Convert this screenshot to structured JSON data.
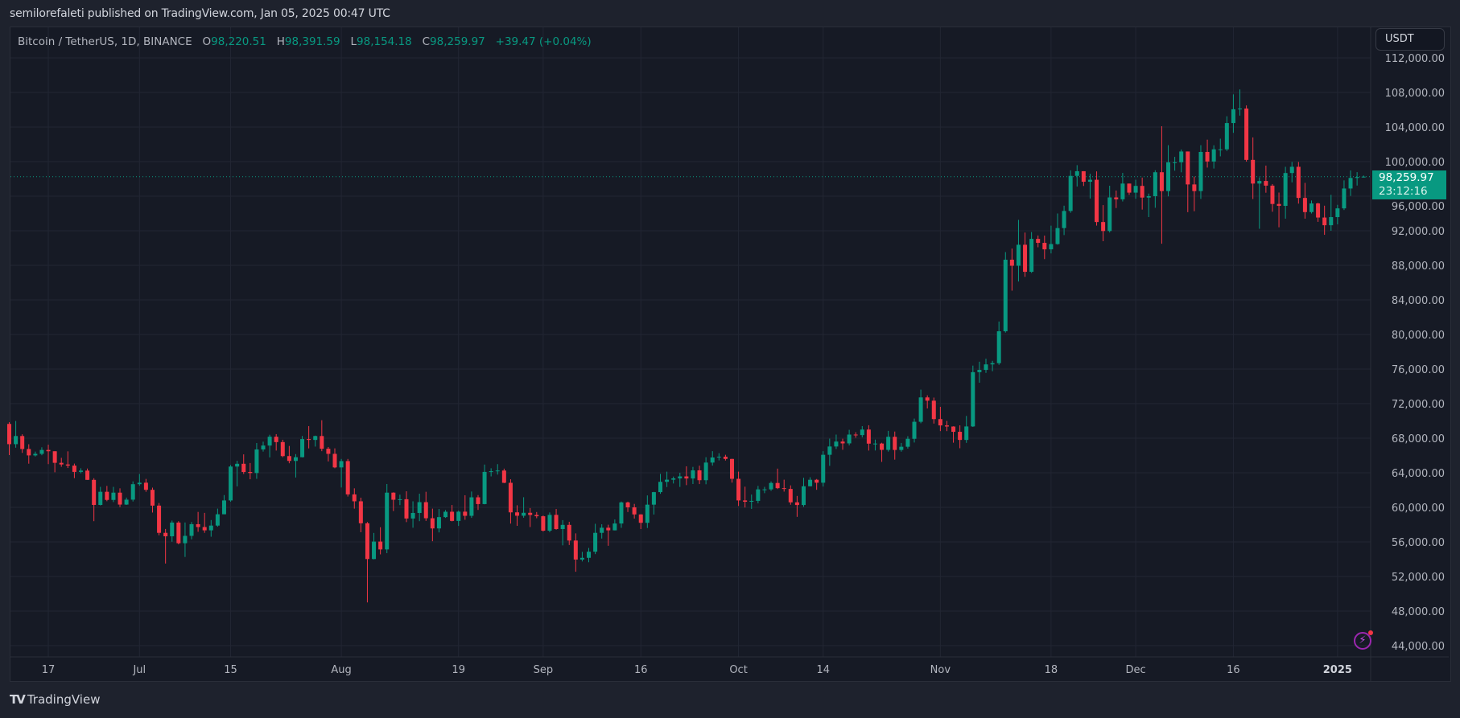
{
  "header": {
    "published": "semilorefaleti published on TradingView.com, Jan 05, 2025 00:47 UTC"
  },
  "legend": {
    "symbol": "Bitcoin / TetherUS, 1D, BINANCE",
    "o_label": "O",
    "o": "98,220.51",
    "h_label": "H",
    "h": "98,391.59",
    "l_label": "L",
    "l": "98,154.18",
    "c_label": "C",
    "c": "98,259.97",
    "change": "+39.47 (+0.04%)"
  },
  "currency_button": "USDT",
  "last_price": {
    "value": "98,259.97",
    "countdown": "23:12:16"
  },
  "footer": {
    "brand": "TradingView",
    "logo": "TV"
  },
  "icons": {
    "alert": "lightning-icon"
  },
  "colors": {
    "up": "#089981",
    "down": "#f23645",
    "background": "#161a25",
    "grid": "#222633"
  },
  "chart_data": {
    "type": "candlestick",
    "title": "",
    "xlabel": "",
    "ylabel": "",
    "ylim": [
      42000,
      112500
    ],
    "grid": true,
    "last_price": 98259.97,
    "y_ticks": [
      {
        "value": 44000,
        "label": "44,000.00"
      },
      {
        "value": 48000,
        "label": "48,000.00"
      },
      {
        "value": 52000,
        "label": "52,000.00"
      },
      {
        "value": 56000,
        "label": "56,000.00"
      },
      {
        "value": 60000,
        "label": "60,000.00"
      },
      {
        "value": 64000,
        "label": "64,000.00"
      },
      {
        "value": 68000,
        "label": "68,000.00"
      },
      {
        "value": 72000,
        "label": "72,000.00"
      },
      {
        "value": 76000,
        "label": "76,000.00"
      },
      {
        "value": 80000,
        "label": "80,000.00"
      },
      {
        "value": 84000,
        "label": "84,000.00"
      },
      {
        "value": 88000,
        "label": "88,000.00"
      },
      {
        "value": 92000,
        "label": "92,000.00"
      },
      {
        "value": 96000,
        "label": "96,000.00"
      },
      {
        "value": 100000,
        "label": "100,000.00"
      },
      {
        "value": 104000,
        "label": "104,000.00"
      },
      {
        "value": 108000,
        "label": "108,000.00"
      },
      {
        "value": 112000,
        "label": "112,000.00"
      }
    ],
    "x_ticks": [
      {
        "date": "2024-06-17",
        "label": "17"
      },
      {
        "date": "2024-07-01",
        "label": "Jul"
      },
      {
        "date": "2024-07-15",
        "label": "15"
      },
      {
        "date": "2024-08-01",
        "label": "Aug"
      },
      {
        "date": "2024-08-19",
        "label": "19"
      },
      {
        "date": "2024-09-01",
        "label": "Sep"
      },
      {
        "date": "2024-09-16",
        "label": "16"
      },
      {
        "date": "2024-10-01",
        "label": "Oct"
      },
      {
        "date": "2024-10-14",
        "label": "14"
      },
      {
        "date": "2024-11-01",
        "label": "Nov"
      },
      {
        "date": "2024-11-18",
        "label": "18"
      },
      {
        "date": "2024-12-01",
        "label": "Dec"
      },
      {
        "date": "2024-12-16",
        "label": "16"
      },
      {
        "date": "2025-01-01",
        "label": "2025"
      }
    ],
    "start_date": "2024-06-11",
    "columns": [
      "open",
      "high",
      "low",
      "close"
    ],
    "ohlc": [
      [
        69650,
        69850,
        66050,
        67310
      ],
      [
        67310,
        69990,
        66900,
        68250
      ],
      [
        68250,
        68450,
        66300,
        66750
      ],
      [
        66750,
        67300,
        65050,
        66010
      ],
      [
        66010,
        66450,
        65880,
        66190
      ],
      [
        66190,
        66950,
        66030,
        66640
      ],
      [
        66640,
        67250,
        65000,
        66490
      ],
      [
        66490,
        66490,
        64060,
        65150
      ],
      [
        65150,
        65730,
        64690,
        64960
      ],
      [
        64960,
        66480,
        64550,
        64830
      ],
      [
        64830,
        65060,
        63380,
        64100
      ],
      [
        64100,
        64520,
        63940,
        64250
      ],
      [
        64250,
        64490,
        63180,
        63180
      ],
      [
        63180,
        63370,
        58400,
        60280
      ],
      [
        60280,
        62370,
        60220,
        61800
      ],
      [
        61800,
        62480,
        60710,
        60860
      ],
      [
        60860,
        62370,
        60610,
        61700
      ],
      [
        61700,
        62200,
        60030,
        60320
      ],
      [
        60320,
        61130,
        60280,
        60890
      ],
      [
        60890,
        63000,
        60680,
        62680
      ],
      [
        62680,
        63860,
        62500,
        62850
      ],
      [
        62850,
        63290,
        61800,
        62030
      ],
      [
        62030,
        62280,
        59400,
        60200
      ],
      [
        60200,
        60500,
        56770,
        57050
      ],
      [
        57050,
        57500,
        53500,
        56650
      ],
      [
        56650,
        58470,
        56020,
        58240
      ],
      [
        58240,
        58400,
        55720,
        55850
      ],
      [
        55850,
        58250,
        54260,
        56700
      ],
      [
        56700,
        58300,
        56300,
        58050
      ],
      [
        58050,
        59470,
        57170,
        57720
      ],
      [
        57720,
        59360,
        57050,
        57340
      ],
      [
        57340,
        58530,
        56600,
        57890
      ],
      [
        57890,
        59850,
        57760,
        59200
      ],
      [
        59200,
        61420,
        59200,
        60800
      ],
      [
        60800,
        64900,
        60650,
        64720
      ],
      [
        64720,
        65390,
        62420,
        65040
      ],
      [
        65040,
        66130,
        63860,
        64090
      ],
      [
        64090,
        65130,
        63250,
        63970
      ],
      [
        63970,
        67440,
        63300,
        66700
      ],
      [
        66700,
        67600,
        66450,
        67150
      ],
      [
        67150,
        68400,
        65780,
        68170
      ],
      [
        68170,
        68470,
        66570,
        67550
      ],
      [
        67550,
        67820,
        65800,
        65930
      ],
      [
        65930,
        67100,
        65100,
        65370
      ],
      [
        65370,
        66160,
        63450,
        65800
      ],
      [
        65800,
        68260,
        65780,
        67900
      ],
      [
        67900,
        69400,
        66820,
        67800
      ],
      [
        67800,
        68300,
        67030,
        68250
      ],
      [
        68250,
        70080,
        66500,
        66780
      ],
      [
        66780,
        66980,
        65310,
        66190
      ],
      [
        66190,
        66820,
        64520,
        64620
      ],
      [
        64620,
        65600,
        62300,
        65350
      ],
      [
        65350,
        65600,
        61250,
        61500
      ],
      [
        61500,
        62200,
        59850,
        60700
      ],
      [
        60700,
        61120,
        57120,
        58160
      ],
      [
        58160,
        58300,
        49000,
        54020
      ],
      [
        54020,
        57040,
        53980,
        56040
      ],
      [
        56040,
        57700,
        54560,
        55130
      ],
      [
        55130,
        62700,
        54700,
        61700
      ],
      [
        61700,
        61740,
        59570,
        60880
      ],
      [
        60880,
        61470,
        60260,
        60940
      ],
      [
        60940,
        61860,
        58290,
        58710
      ],
      [
        58710,
        60700,
        57640,
        59350
      ],
      [
        59350,
        61580,
        58400,
        60600
      ],
      [
        60600,
        61800,
        58430,
        58740
      ],
      [
        58740,
        59850,
        56080,
        57560
      ],
      [
        57560,
        59810,
        57100,
        58870
      ],
      [
        58870,
        59690,
        58780,
        59490
      ],
      [
        59490,
        60270,
        58380,
        58430
      ],
      [
        58430,
        59620,
        57850,
        59500
      ],
      [
        59500,
        61400,
        58560,
        59020
      ],
      [
        59020,
        61830,
        58780,
        61160
      ],
      [
        61160,
        61420,
        59700,
        60380
      ],
      [
        60380,
        64950,
        60350,
        64100
      ],
      [
        64100,
        64520,
        63580,
        64180
      ],
      [
        64180,
        65000,
        63790,
        64260
      ],
      [
        64260,
        64480,
        62800,
        62840
      ],
      [
        62840,
        63250,
        58120,
        59420
      ],
      [
        59420,
        60240,
        57860,
        59030
      ],
      [
        59030,
        61170,
        58800,
        59370
      ],
      [
        59370,
        59920,
        57720,
        59120
      ],
      [
        59120,
        59460,
        58740,
        58970
      ],
      [
        58970,
        59060,
        57200,
        57300
      ],
      [
        57300,
        59410,
        57120,
        59130
      ],
      [
        59130,
        59810,
        57410,
        57490
      ],
      [
        57490,
        58520,
        55600,
        57970
      ],
      [
        57970,
        58330,
        55640,
        56160
      ],
      [
        56160,
        56990,
        52550,
        53960
      ],
      [
        53960,
        54850,
        53740,
        54160
      ],
      [
        54160,
        55300,
        53650,
        54870
      ],
      [
        54870,
        58100,
        54590,
        57050
      ],
      [
        57050,
        58040,
        56390,
        57640
      ],
      [
        57640,
        57990,
        55550,
        57340
      ],
      [
        57340,
        58600,
        57330,
        58130
      ],
      [
        58130,
        60670,
        57630,
        60570
      ],
      [
        60570,
        60660,
        59460,
        60000
      ],
      [
        60000,
        60400,
        58700,
        59180
      ],
      [
        59180,
        59210,
        57490,
        58210
      ],
      [
        58210,
        61380,
        57610,
        60310
      ],
      [
        60310,
        61790,
        59170,
        61760
      ],
      [
        61760,
        63870,
        61570,
        62950
      ],
      [
        62950,
        64130,
        62350,
        63200
      ],
      [
        63200,
        63560,
        62760,
        63350
      ],
      [
        63350,
        64000,
        62360,
        63580
      ],
      [
        63580,
        64750,
        62570,
        63340
      ],
      [
        63340,
        64680,
        62700,
        64280
      ],
      [
        64280,
        64820,
        62690,
        63140
      ],
      [
        63140,
        65800,
        62670,
        65180
      ],
      [
        65180,
        66500,
        64830,
        65770
      ],
      [
        65770,
        66260,
        65430,
        65860
      ],
      [
        65860,
        66080,
        65420,
        65600
      ],
      [
        65600,
        65620,
        62860,
        63300
      ],
      [
        63300,
        64130,
        60160,
        60800
      ],
      [
        60800,
        62390,
        59980,
        60650
      ],
      [
        60650,
        61480,
        59820,
        60750
      ],
      [
        60750,
        62480,
        60460,
        62080
      ],
      [
        62080,
        62370,
        61640,
        62080
      ],
      [
        62080,
        63000,
        61900,
        62820
      ],
      [
        62820,
        64480,
        62120,
        62220
      ],
      [
        62220,
        63200,
        61820,
        62130
      ],
      [
        62130,
        62540,
        60300,
        60580
      ],
      [
        60580,
        61320,
        58900,
        60270
      ],
      [
        60270,
        63420,
        60060,
        62440
      ],
      [
        62440,
        63480,
        62420,
        63190
      ],
      [
        63190,
        63280,
        62030,
        62850
      ],
      [
        62850,
        66500,
        62410,
        66080
      ],
      [
        66080,
        67950,
        64800,
        67040
      ],
      [
        67040,
        68420,
        66750,
        67610
      ],
      [
        67610,
        67940,
        66660,
        67400
      ],
      [
        67400,
        68970,
        67170,
        68420
      ],
      [
        68420,
        68690,
        68050,
        68360
      ],
      [
        68360,
        69400,
        68100,
        69000
      ],
      [
        69000,
        69500,
        66570,
        67370
      ],
      [
        67370,
        67840,
        66580,
        67380
      ],
      [
        67380,
        67470,
        65260,
        66650
      ],
      [
        66650,
        68850,
        66450,
        68160
      ],
      [
        68160,
        68770,
        65520,
        66640
      ],
      [
        66640,
        67450,
        66440,
        67010
      ],
      [
        67010,
        68230,
        66800,
        67930
      ],
      [
        67930,
        70270,
        67500,
        69900
      ],
      [
        69900,
        73620,
        69730,
        72720
      ],
      [
        72720,
        72960,
        71440,
        72340
      ],
      [
        72340,
        72700,
        69690,
        70210
      ],
      [
        70210,
        71630,
        68820,
        69480
      ],
      [
        69480,
        70000,
        68820,
        69350
      ],
      [
        69350,
        69380,
        67480,
        68740
      ],
      [
        68740,
        69490,
        66840,
        67800
      ],
      [
        67800,
        70580,
        67460,
        69360
      ],
      [
        69360,
        76400,
        69300,
        75640
      ],
      [
        75640,
        76850,
        74420,
        75900
      ],
      [
        75900,
        77200,
        75560,
        76540
      ],
      [
        76540,
        76950,
        75750,
        76680
      ],
      [
        76680,
        81500,
        76490,
        80370
      ],
      [
        80370,
        89530,
        80220,
        88650
      ],
      [
        88650,
        89940,
        85070,
        87950
      ],
      [
        87950,
        93260,
        86130,
        90380
      ],
      [
        90380,
        91790,
        86670,
        87250
      ],
      [
        87250,
        91850,
        87120,
        91060
      ],
      [
        91060,
        91450,
        90090,
        90600
      ],
      [
        90600,
        91440,
        88720,
        89850
      ],
      [
        89850,
        92590,
        89380,
        90460
      ],
      [
        90460,
        94000,
        90390,
        92310
      ],
      [
        92310,
        94900,
        91500,
        94290
      ],
      [
        94290,
        98990,
        94080,
        98350
      ],
      [
        98350,
        99590,
        97120,
        98890
      ],
      [
        98890,
        98890,
        97180,
        97670
      ],
      [
        97670,
        98590,
        95730,
        97900
      ],
      [
        97900,
        98870,
        92600,
        93010
      ],
      [
        93010,
        94970,
        90790,
        91970
      ],
      [
        91970,
        97210,
        91800,
        95860
      ],
      [
        95860,
        96650,
        94630,
        95640
      ],
      [
        95640,
        98690,
        95390,
        97460
      ],
      [
        97460,
        97460,
        96150,
        96410
      ],
      [
        96410,
        97900,
        95700,
        97190
      ],
      [
        97190,
        98150,
        94450,
        95840
      ],
      [
        95840,
        96300,
        93580,
        96000
      ],
      [
        96000,
        99000,
        94660,
        98770
      ],
      [
        98770,
        104090,
        90500,
        96590
      ],
      [
        96590,
        101900,
        95980,
        99920
      ],
      [
        99920,
        100550,
        98950,
        99920
      ],
      [
        99920,
        101400,
        98760,
        101170
      ],
      [
        101170,
        101170,
        94150,
        97360
      ],
      [
        97360,
        98270,
        94260,
        96590
      ],
      [
        96590,
        101900,
        95680,
        101120
      ],
      [
        101120,
        102540,
        99310,
        100010
      ],
      [
        100010,
        101890,
        99200,
        101420
      ],
      [
        101420,
        102650,
        100610,
        101420
      ],
      [
        101420,
        105250,
        101230,
        104460
      ],
      [
        104460,
        107780,
        103330,
        106060
      ],
      [
        106060,
        108350,
        105320,
        106140
      ],
      [
        106140,
        106500,
        100000,
        100200
      ],
      [
        100200,
        102800,
        95670,
        97460
      ],
      [
        97460,
        98170,
        92230,
        97760
      ],
      [
        97760,
        99540,
        96400,
        97220
      ],
      [
        97220,
        97400,
        94200,
        95100
      ],
      [
        95100,
        96420,
        92400,
        94880
      ],
      [
        94880,
        99400,
        93400,
        98680
      ],
      [
        98680,
        99960,
        97600,
        99400
      ],
      [
        99400,
        99960,
        95140,
        95800
      ],
      [
        95800,
        97540,
        93400,
        94160
      ],
      [
        94160,
        95500,
        94000,
        95160
      ],
      [
        95160,
        95240,
        93030,
        93530
      ],
      [
        93530,
        94900,
        91530,
        92640
      ],
      [
        92640,
        96160,
        92000,
        93580
      ],
      [
        93580,
        95000,
        92740,
        94590
      ],
      [
        94590,
        97830,
        94400,
        96890
      ],
      [
        96890,
        98980,
        96030,
        98110
      ],
      [
        98110,
        98780,
        97230,
        98220
      ],
      [
        98220,
        98391.59,
        98154.18,
        98259.97
      ]
    ]
  }
}
